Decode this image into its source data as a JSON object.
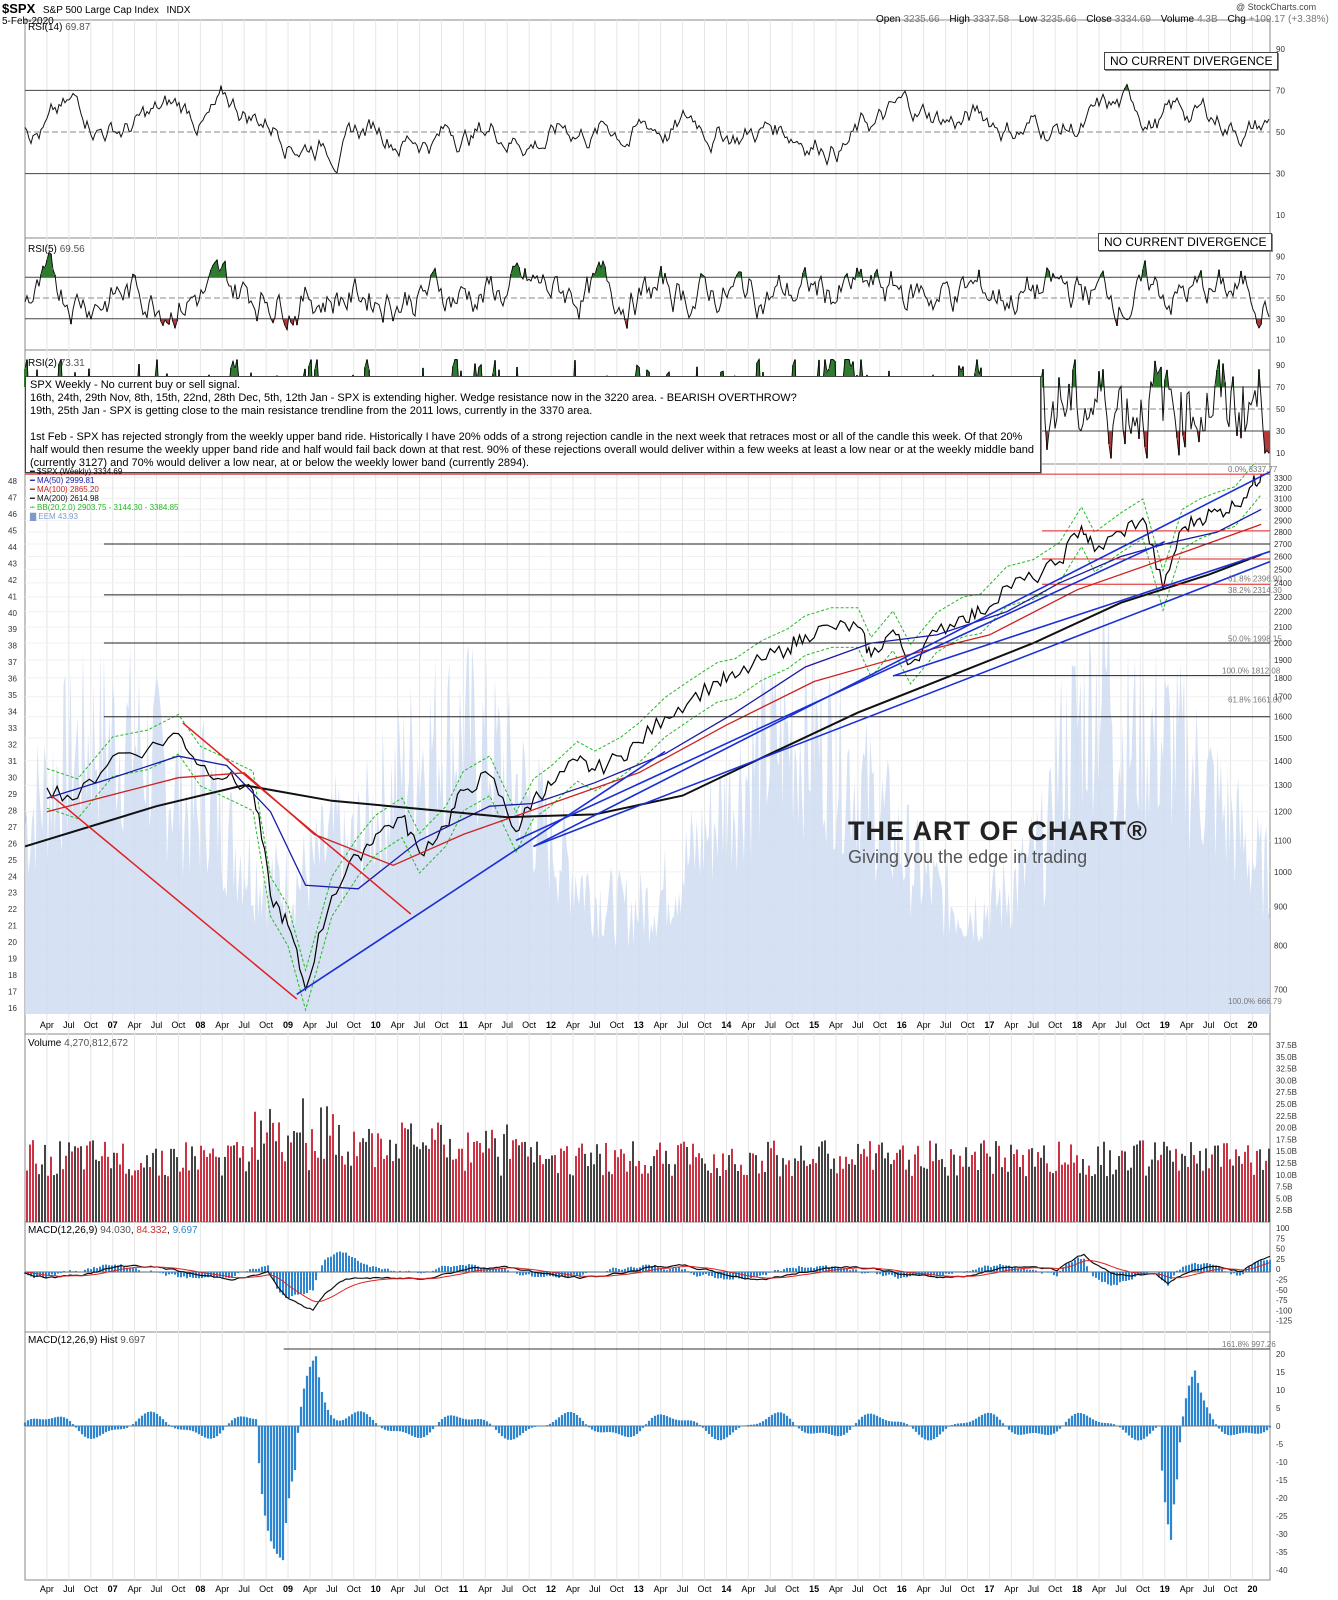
{
  "header": {
    "symbol": "$SPX",
    "name": "S&P 500 Large Cap Index",
    "exchange": "INDX",
    "date": "5-Feb-2020",
    "open_label": "Open",
    "open": "3235.66",
    "high_label": "High",
    "high": "3337.58",
    "low_label": "Low",
    "low": "3235.66",
    "close_label": "Close",
    "close": "3334.69",
    "volume_label": "Volume",
    "volume": "4.3B",
    "chg_label": "Chg",
    "chg": "+109.17 (+3.38%)",
    "credit": "@ StockCharts.com"
  },
  "colors": {
    "price_line": "#000000",
    "ma50": "#1a1aa8",
    "ma100": "#cc2222",
    "ma200": "#111111",
    "bollinger": "#22bb22",
    "volume_bg": "#cfdcf2",
    "rsi_high_fill": "#2e7d2e",
    "rsi_low_fill": "#b23a3a",
    "trend_blue": "#1a2fd6",
    "trend_red": "#e02020",
    "macd_hist": "#2e86d0",
    "vol_up": "#cc3344",
    "vol_down": "#444444"
  },
  "panels": {
    "rsi14": {
      "label": "RSI(14)",
      "value": "69.87"
    },
    "rsi5": {
      "label": "RSI(5)",
      "value": "69.56"
    },
    "rsi2": {
      "label": "RSI(2)",
      "value": "73.31"
    },
    "volume": {
      "label": "Volume",
      "value": "4,270,812,672"
    },
    "macd": {
      "label": "MACD(12,26,9)",
      "value": "94.030",
      "signal": "84.332",
      "hist": "9.697"
    },
    "macd_hist": {
      "label": "MACD(12,26,9) Hist",
      "value": "9.697"
    }
  },
  "annotations": {
    "divergence_rsi14": "NO CURRENT DIVERGENCE",
    "divergence_rsi5": "NO CURRENT DIVERGENCE",
    "brand_name": "THE ART OF CHART®",
    "brand_tagline": "Giving you the edge in trading",
    "commentary": [
      "SPX Weekly - No current buy or sell signal.",
      "16th, 24th, 29th Nov, 8th, 15th, 22nd, 28th Dec, 5th, 12th Jan - SPX is extending higher. Wedge resistance now in the 3220 area. - BEARISH OVERTHROW?",
      "19th, 25th Jan - SPX is getting close to the main resistance trendline from the 2011 lows, currently in the 3370 area.",
      "1st Feb - SPX has rejected strongly from the weekly upper band ride. Historically I have 20% odds of a strong rejection candle in the next week that retraces most or all of the candle this week. Of that 20% half would then resume the weekly upper band ride and half would fail back down at that rest. 90% of these rejections overall would deliver within a few weeks at least a low near or at the weekly middle band (currently 3127) and 70% would deliver a low near, at or below the weekly lower band (currently 2894)."
    ],
    "fib_labels": [
      "0.0% 3337.77",
      "61.8% 2396.90",
      "38.2% 2314.30",
      "50.0% 1998.15",
      "100.0% 1812.08",
      "61.8% 1661.00",
      "100.0% 666.79",
      "161.8% 997.26"
    ]
  },
  "legend": [
    {
      "text": "$SPX (Weekly) 3334.69",
      "color": "#000000"
    },
    {
      "text": "MA(50) 2999.81",
      "color": "#1a1aa8"
    },
    {
      "text": "MA(100) 2865.20",
      "color": "#cc2222"
    },
    {
      "text": "MA(200) 2614.98",
      "color": "#111111"
    },
    {
      "text": "BB(20,2.0) 2903.75 - 3144.30 - 3384.85",
      "color": "#22bb22"
    },
    {
      "text": "EEM 43.93",
      "color": "#7f99cc"
    }
  ],
  "chart_data": {
    "type": "line",
    "title": "$SPX S&P 500 Large Cap Index INDX",
    "xlabel": "",
    "ylabel": "",
    "x_ticks": [
      "Apr",
      "Jul",
      "Oct",
      "07",
      "Apr",
      "Jul",
      "Oct",
      "08",
      "Apr",
      "Jul",
      "Oct",
      "09",
      "Apr",
      "Jul",
      "Oct",
      "10",
      "Apr",
      "Jul",
      "Oct",
      "11",
      "Apr",
      "Jul",
      "Oct",
      "12",
      "Apr",
      "Jul",
      "Oct",
      "13",
      "Apr",
      "Jul",
      "Oct",
      "14",
      "Apr",
      "Jul",
      "Oct",
      "15",
      "Apr",
      "Jul",
      "Oct",
      "16",
      "Apr",
      "Jul",
      "Oct",
      "17",
      "Apr",
      "Jul",
      "Oct",
      "18",
      "Apr",
      "Jul",
      "Oct",
      "19",
      "Apr",
      "Jul",
      "Oct",
      "20"
    ],
    "price_y_ticks_right": [
      700,
      800,
      900,
      1000,
      1100,
      1200,
      1300,
      1400,
      1500,
      1600,
      1700,
      1800,
      1900,
      2000,
      2100,
      2200,
      2300,
      2400,
      2500,
      2600,
      2700,
      2800,
      2900,
      3000,
      3100,
      3200,
      3300
    ],
    "eem_y_ticks_left": [
      16,
      17,
      18,
      19,
      20,
      21,
      22,
      23,
      24,
      25,
      26,
      27,
      28,
      29,
      30,
      31,
      32,
      33,
      34,
      35,
      36,
      37,
      38,
      39,
      40,
      41,
      42,
      43,
      44,
      45,
      46,
      47,
      48
    ],
    "ylim": [
      650,
      3400
    ],
    "series": [
      {
        "name": "$SPX (Weekly)",
        "x": [
          2006.25,
          2006.6,
          2007.0,
          2007.4,
          2007.75,
          2008.0,
          2008.3,
          2008.6,
          2008.8,
          2009.0,
          2009.2,
          2009.5,
          2009.8,
          2010.0,
          2010.3,
          2010.5,
          2010.8,
          2011.0,
          2011.3,
          2011.6,
          2011.8,
          2012.0,
          2012.3,
          2012.5,
          2012.8,
          2013.0,
          2013.3,
          2013.6,
          2013.9,
          2014.1,
          2014.4,
          2014.7,
          2014.9,
          2015.2,
          2015.5,
          2015.65,
          2015.9,
          2016.1,
          2016.4,
          2016.7,
          2016.9,
          2017.2,
          2017.5,
          2017.8,
          2018.05,
          2018.2,
          2018.5,
          2018.75,
          2018.98,
          2019.2,
          2019.4,
          2019.6,
          2019.8,
          2020.0,
          2020.1
        ],
        "y": [
          1290,
          1250,
          1420,
          1450,
          1520,
          1380,
          1330,
          1280,
          930,
          850,
          700,
          930,
          1050,
          1120,
          1180,
          1060,
          1150,
          1280,
          1340,
          1130,
          1250,
          1300,
          1400,
          1360,
          1420,
          1480,
          1600,
          1690,
          1780,
          1800,
          1900,
          1970,
          2050,
          2100,
          2100,
          1920,
          2080,
          1880,
          2070,
          2170,
          2190,
          2380,
          2430,
          2560,
          2850,
          2640,
          2800,
          2920,
          2350,
          2830,
          2920,
          2980,
          3030,
          3230,
          3335
        ]
      },
      {
        "name": "MA(50)",
        "x": [
          2006.25,
          2007.0,
          2007.75,
          2008.3,
          2008.8,
          2009.2,
          2009.8,
          2010.5,
          2011.3,
          2011.8,
          2012.5,
          2013.3,
          2014.1,
          2014.9,
          2015.65,
          2016.4,
          2017.2,
          2017.8,
          2018.5,
          2019.0,
          2019.6,
          2020.1
        ],
        "y": [
          1250,
          1330,
          1420,
          1380,
          1200,
          960,
          950,
          1100,
          1220,
          1230,
          1310,
          1430,
          1620,
          1860,
          2000,
          2050,
          2200,
          2400,
          2600,
          2700,
          2800,
          2999
        ]
      },
      {
        "name": "MA(100)",
        "x": [
          2006.25,
          2007.75,
          2008.5,
          2009.3,
          2010.2,
          2011.0,
          2012.0,
          2013.0,
          2014.0,
          2015.0,
          2016.0,
          2017.0,
          2018.0,
          2019.0,
          2020.1
        ],
        "y": [
          1200,
          1330,
          1350,
          1120,
          1020,
          1120,
          1230,
          1350,
          1560,
          1780,
          1920,
          2050,
          2350,
          2580,
          2865
        ]
      },
      {
        "name": "MA(200)",
        "x": [
          2006.0,
          2007.5,
          2008.5,
          2009.5,
          2010.5,
          2011.5,
          2012.5,
          2013.5,
          2014.5,
          2015.5,
          2016.5,
          2017.5,
          2018.5,
          2019.5,
          2020.1
        ],
        "y": [
          1080,
          1220,
          1300,
          1240,
          1210,
          1180,
          1190,
          1260,
          1430,
          1620,
          1800,
          2000,
          2260,
          2460,
          2615
        ]
      }
    ]
  }
}
